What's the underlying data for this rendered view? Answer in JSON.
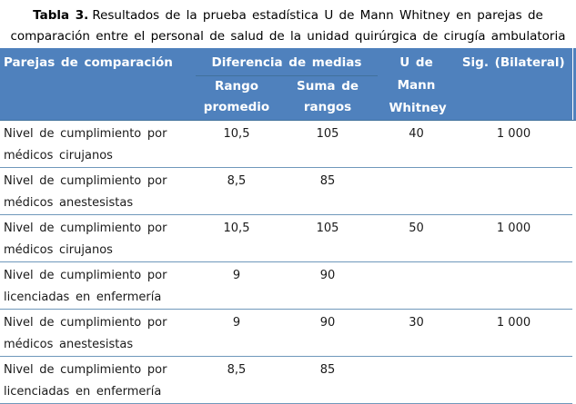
{
  "title": {
    "label": "Tabla 3.",
    "line1": "Resultados de la prueba estadística U de Mann Whitney en parejas de",
    "line2": "comparación entre el personal de salud de la unidad quirúrgica de cirugía ambulatoria"
  },
  "table": {
    "headers": {
      "parejas": "Parejas de comparación",
      "diferencia": "Diferencia de medias",
      "rango": "Rango promedio",
      "suma": "Suma de rangos",
      "u": "U de Mann Whitney",
      "sig": "Sig. (Bilateral)"
    },
    "rows": [
      {
        "label": "Nivel de cumplimiento por médicos cirujanos",
        "rango": "10,5",
        "suma": "105",
        "u": "40",
        "sig": "1 000"
      },
      {
        "label": "Nivel de cumplimiento por médicos anestesistas",
        "rango": "8,5",
        "suma": "85",
        "u": "",
        "sig": ""
      },
      {
        "label": "Nivel de cumplimiento por médicos cirujanos",
        "rango": "10,5",
        "suma": "105",
        "u": "50",
        "sig": "1 000"
      },
      {
        "label": "Nivel de cumplimiento por licenciadas en enfermería",
        "rango": "9",
        "suma": "90",
        "u": "",
        "sig": ""
      },
      {
        "label": "Nivel de cumplimiento por médicos anestesistas",
        "rango": "9",
        "suma": "90",
        "u": "30",
        "sig": "1 000"
      },
      {
        "label": "Nivel de cumplimiento por licenciadas en enfermería",
        "rango": "8,5",
        "suma": "85",
        "u": "",
        "sig": ""
      }
    ]
  },
  "colors": {
    "header_bg": "#4f81bd",
    "header_text": "#ffffff",
    "row_border": "#6f98bb",
    "header_border": "#41719c"
  }
}
